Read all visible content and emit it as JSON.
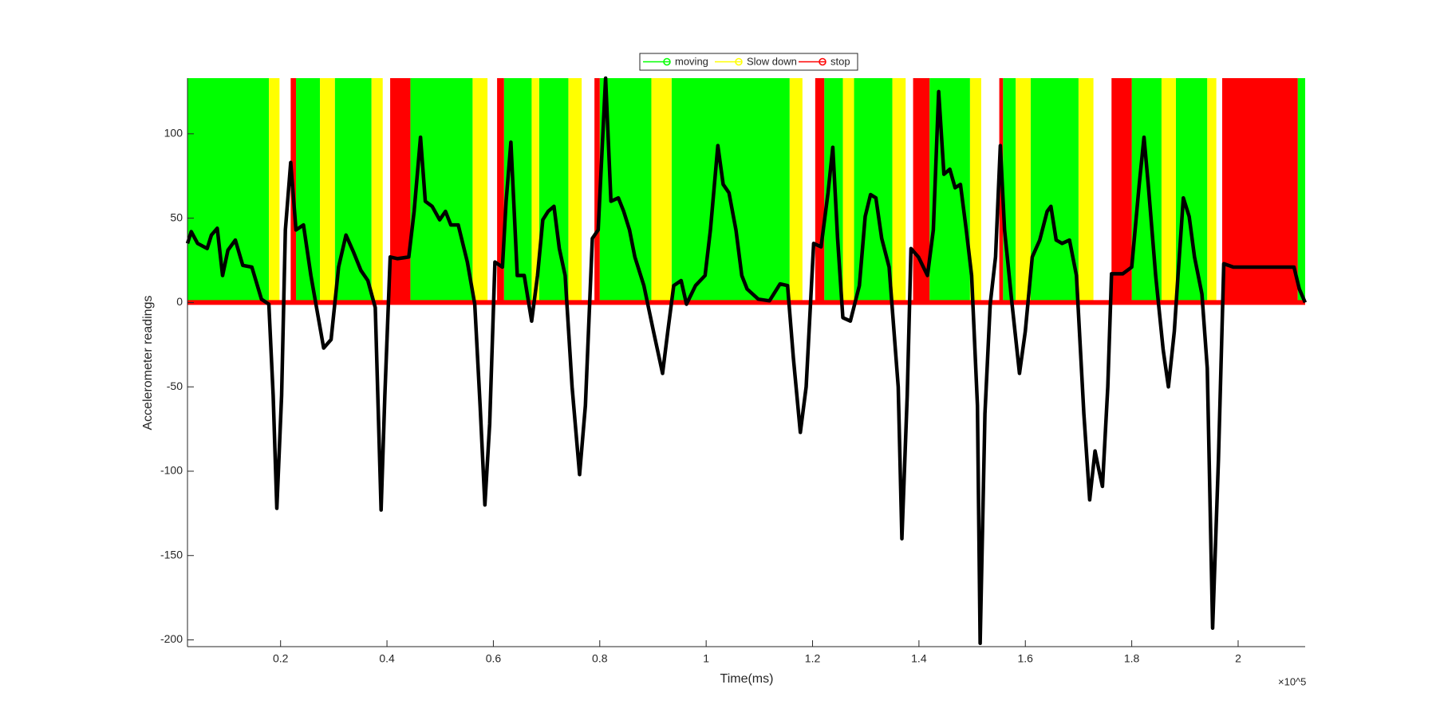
{
  "chart_data": {
    "type": "line",
    "xlabel": "Time(ms)",
    "ylabel": "Accelerometer readings",
    "x_exponent": "×10^5",
    "xlim": [
      0.025,
      2.126
    ],
    "ylim": [
      -204,
      133
    ],
    "xticks": [
      0.2,
      0.4,
      0.6,
      0.8,
      1,
      1.2,
      1.4,
      1.6,
      1.8,
      2
    ],
    "yticks": [
      -200,
      -150,
      -100,
      -50,
      0,
      50,
      100
    ],
    "series": [
      {
        "name": "moving",
        "color": "#00ff00",
        "intervals": [
          [
            0.025,
            0.178
          ],
          [
            0.229,
            0.274
          ],
          [
            0.302,
            0.371
          ],
          [
            0.444,
            0.561
          ],
          [
            0.62,
            0.672
          ],
          [
            0.686,
            0.741
          ],
          [
            0.8,
            0.897
          ],
          [
            0.935,
            1.157
          ],
          [
            1.222,
            1.257
          ],
          [
            1.278,
            1.35
          ],
          [
            1.42,
            1.496
          ],
          [
            1.558,
            1.582
          ],
          [
            1.61,
            1.7
          ],
          [
            1.8,
            1.856
          ],
          [
            1.883,
            1.942
          ],
          [
            2.112,
            2.126
          ]
        ]
      },
      {
        "name": "Slow down",
        "color": "#ffff00",
        "intervals": [
          [
            0.178,
            0.198
          ],
          [
            0.274,
            0.302
          ],
          [
            0.371,
            0.392
          ],
          [
            0.561,
            0.589
          ],
          [
            0.672,
            0.686
          ],
          [
            0.741,
            0.766
          ],
          [
            0.897,
            0.935
          ],
          [
            1.157,
            1.181
          ],
          [
            1.257,
            1.278
          ],
          [
            1.35,
            1.375
          ],
          [
            1.496,
            1.517
          ],
          [
            1.582,
            1.61
          ],
          [
            1.7,
            1.728
          ],
          [
            1.856,
            1.883
          ],
          [
            1.942,
            1.959
          ]
        ]
      },
      {
        "name": "stop",
        "color": "#ff0000",
        "intervals": [
          [
            0.219,
            0.229
          ],
          [
            0.406,
            0.444
          ],
          [
            0.607,
            0.62
          ],
          [
            0.79,
            0.8
          ],
          [
            1.205,
            1.222
          ],
          [
            1.389,
            1.42
          ],
          [
            1.551,
            1.558
          ],
          [
            1.762,
            1.8
          ],
          [
            1.97,
            2.112
          ]
        ]
      }
    ],
    "signal": {
      "color": "#000000",
      "x": [
        0.025,
        0.032,
        0.044,
        0.062,
        0.07,
        0.081,
        0.091,
        0.101,
        0.115,
        0.129,
        0.146,
        0.164,
        0.178,
        0.186,
        0.193,
        0.202,
        0.209,
        0.219,
        0.229,
        0.243,
        0.257,
        0.271,
        0.281,
        0.295,
        0.309,
        0.323,
        0.337,
        0.351,
        0.364,
        0.378,
        0.389,
        0.396,
        0.406,
        0.42,
        0.441,
        0.451,
        0.463,
        0.472,
        0.485,
        0.499,
        0.51,
        0.52,
        0.534,
        0.551,
        0.565,
        0.575,
        0.584,
        0.593,
        0.603,
        0.617,
        0.624,
        0.633,
        0.645,
        0.658,
        0.672,
        0.683,
        0.693,
        0.703,
        0.714,
        0.724,
        0.735,
        0.748,
        0.762,
        0.773,
        0.786,
        0.797,
        0.811,
        0.821,
        0.835,
        0.845,
        0.856,
        0.866,
        0.883,
        0.901,
        0.918,
        0.928,
        0.939,
        0.953,
        0.963,
        0.98,
        0.998,
        1.008,
        1.022,
        1.032,
        1.043,
        1.056,
        1.067,
        1.077,
        1.098,
        1.119,
        1.139,
        1.153,
        1.164,
        1.177,
        1.188,
        1.202,
        1.216,
        1.229,
        1.238,
        1.247,
        1.257,
        1.271,
        1.288,
        1.299,
        1.309,
        1.319,
        1.33,
        1.344,
        1.361,
        1.368,
        1.378,
        1.385,
        1.399,
        1.416,
        1.427,
        1.437,
        1.447,
        1.458,
        1.468,
        1.478,
        1.489,
        1.499,
        1.51,
        1.515,
        1.524,
        1.534,
        1.544,
        1.553,
        1.561,
        1.575,
        1.589,
        1.6,
        1.613,
        1.627,
        1.641,
        1.648,
        1.658,
        1.669,
        1.683,
        1.696,
        1.71,
        1.721,
        1.731,
        1.738,
        1.745,
        1.755,
        1.762,
        1.783,
        1.8,
        1.814,
        1.823,
        1.831,
        1.845,
        1.859,
        1.869,
        1.88,
        1.887,
        1.897,
        1.908,
        1.918,
        1.932,
        1.942,
        1.952,
        1.963,
        1.973,
        1.991,
        2.094,
        2.105,
        2.115,
        2.126
      ],
      "values": [
        35,
        42,
        35,
        32,
        40,
        44,
        16,
        31,
        37,
        22,
        21,
        2,
        -1,
        -55,
        -122,
        -55,
        43,
        83,
        43,
        46,
        16,
        -9,
        -27,
        -22,
        21,
        40,
        30,
        19,
        13,
        -3,
        -123,
        -55,
        27,
        26,
        27,
        54,
        98,
        60,
        57,
        49,
        54,
        46,
        46,
        24,
        -1,
        -61,
        -120,
        -72,
        24,
        21,
        60,
        95,
        16,
        16,
        -11,
        16,
        49,
        54,
        57,
        32,
        16,
        -50,
        -102,
        -61,
        38,
        43,
        133,
        60,
        62,
        54,
        43,
        27,
        10,
        -17,
        -42,
        -17,
        10,
        13,
        -1,
        10,
        16,
        43,
        93,
        70,
        65,
        43,
        16,
        8,
        2,
        1,
        11,
        10,
        -33,
        -77,
        -50,
        35,
        33,
        65,
        92,
        38,
        -9,
        -11,
        10,
        51,
        64,
        62,
        38,
        21,
        -50,
        -140,
        -55,
        32,
        27,
        16,
        43,
        125,
        76,
        79,
        68,
        70,
        43,
        16,
        -61,
        -202,
        -66,
        -1,
        27,
        93,
        43,
        -1,
        -42,
        -17,
        27,
        37,
        54,
        57,
        37,
        35,
        37,
        16,
        -66,
        -117,
        -88,
        -99,
        -109,
        -50,
        17,
        17,
        21,
        70,
        98,
        70,
        16,
        -28,
        -50,
        -17,
        16,
        62,
        51,
        27,
        5,
        -39,
        -193,
        -93,
        23,
        21,
        21,
        21,
        8,
        0
      ]
    }
  }
}
